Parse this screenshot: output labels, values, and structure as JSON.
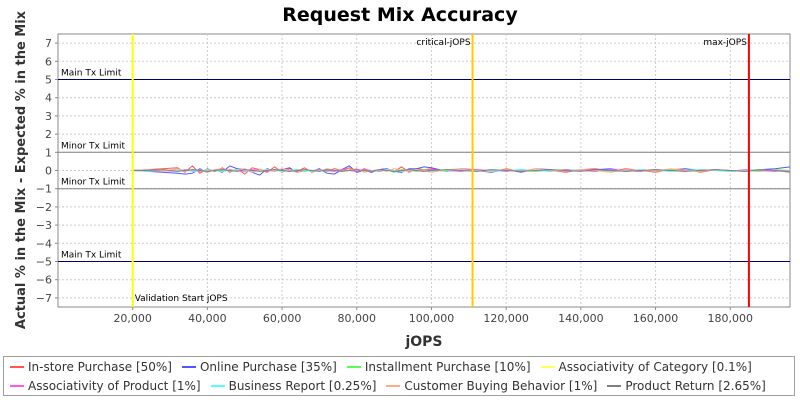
{
  "chart_data": {
    "type": "line",
    "title": "Request Mix Accuracy",
    "xlabel": "jOPS",
    "ylabel": "Actual % in the Mix - Expected % in the Mix",
    "xlim": [
      0,
      196000
    ],
    "ylim": [
      -7.5,
      7.5
    ],
    "x_ticks": [
      20000,
      40000,
      60000,
      80000,
      100000,
      120000,
      140000,
      160000,
      180000
    ],
    "x_tick_labels": [
      "20,000",
      "40,000",
      "60,000",
      "80,000",
      "100,000",
      "120,000",
      "140,000",
      "160,000",
      "180,000"
    ],
    "y_ticks": [
      -7,
      -6,
      -5,
      -4,
      -3,
      -2,
      -1,
      0,
      1,
      2,
      3,
      4,
      5,
      6,
      7
    ],
    "y_tick_labels": [
      "−7",
      "−6",
      "−5",
      "−4",
      "−3",
      "−2",
      "−1",
      "0",
      "1",
      "2",
      "3",
      "4",
      "5",
      "6",
      "7"
    ],
    "grid": true,
    "legend_position": "bottom",
    "horizontal_markers": [
      {
        "y": 5,
        "label": "Main Tx Limit",
        "color": "#000066"
      },
      {
        "y": 1,
        "label": "Minor Tx Limit",
        "color": "#808080"
      },
      {
        "y": -1,
        "label": "Minor Tx Limit",
        "color": "#808080"
      },
      {
        "y": -5,
        "label": "Main Tx Limit",
        "color": "#000066"
      }
    ],
    "vertical_markers": [
      {
        "x": 20000,
        "label": "Validation Start jOPS",
        "color": "#ffff00"
      },
      {
        "x": 111000,
        "label": "critical-jOPS",
        "color": "#ffcc00"
      },
      {
        "x": 185000,
        "label": "max-jOPS",
        "color": "#ff0000"
      }
    ],
    "x": [
      20000,
      24000,
      28000,
      32000,
      34000,
      36000,
      38000,
      40000,
      42000,
      44000,
      46000,
      48000,
      50000,
      52000,
      54000,
      56000,
      58000,
      60000,
      62000,
      64000,
      66000,
      68000,
      70000,
      72000,
      74000,
      76000,
      78000,
      80000,
      82000,
      84000,
      86000,
      88000,
      90000,
      92000,
      94000,
      96000,
      98000,
      100000,
      104000,
      108000,
      112000,
      116000,
      120000,
      124000,
      128000,
      132000,
      136000,
      140000,
      144000,
      148000,
      152000,
      156000,
      160000,
      164000,
      168000,
      172000,
      176000,
      180000,
      184000,
      188000,
      192000,
      196000
    ],
    "series": [
      {
        "name": "In-store Purchase [50%]",
        "color": "#ff5555",
        "values": [
          0.0,
          0.05,
          0.1,
          0.15,
          -0.1,
          0.25,
          -0.15,
          0.1,
          -0.05,
          0.15,
          -0.1,
          0.1,
          -0.2,
          0.15,
          0.05,
          -0.1,
          0.2,
          -0.1,
          0.1,
          -0.05,
          0.15,
          -0.1,
          0.05,
          -0.05,
          0.1,
          0.0,
          0.15,
          -0.1,
          0.1,
          -0.05,
          0.05,
          0.1,
          -0.05,
          0.2,
          -0.1,
          0.1,
          0.05,
          0.1,
          -0.05,
          0.1,
          0.05,
          -0.1,
          0.1,
          -0.05,
          0.1,
          0.0,
          -0.1,
          0.05,
          0.1,
          -0.05,
          0.1,
          0.0,
          -0.1,
          0.05,
          0.1,
          -0.1,
          0.05,
          0.0,
          -0.05,
          0.05,
          0.0,
          -0.1
        ]
      },
      {
        "name": "Online Purchase [35%]",
        "color": "#5555ff",
        "values": [
          0.0,
          -0.05,
          -0.1,
          -0.15,
          -0.2,
          -0.15,
          0.1,
          -0.1,
          0.05,
          -0.1,
          0.25,
          0.1,
          0.05,
          -0.1,
          -0.25,
          0.1,
          -0.05,
          0.05,
          0.15,
          -0.1,
          0.0,
          -0.05,
          0.1,
          -0.15,
          -0.2,
          0.05,
          0.25,
          -0.1,
          0.0,
          -0.1,
          0.05,
          0.1,
          -0.05,
          -0.1,
          0.1,
          0.1,
          0.2,
          0.15,
          -0.05,
          0.1,
          0.0,
          -0.1,
          0.05,
          -0.1,
          0.1,
          0.05,
          -0.05,
          0.0,
          0.05,
          0.1,
          -0.05,
          0.0,
          0.05,
          -0.05,
          0.1,
          0.0,
          0.05,
          -0.05,
          0.0,
          0.05,
          0.1,
          0.2
        ]
      },
      {
        "name": "Installment Purchase [10%]",
        "color": "#55ff55",
        "values": [
          0.0,
          0.0,
          0.05,
          0.0,
          -0.05,
          0.05,
          0.0,
          -0.05,
          0.05,
          0.0,
          -0.05,
          0.05,
          0.0,
          -0.05,
          0.05,
          0.0,
          0.05,
          -0.05,
          0.0,
          0.05,
          -0.05,
          0.0,
          0.05,
          -0.05,
          0.0,
          0.05,
          0.0,
          -0.05,
          0.05,
          0.0,
          -0.05,
          0.05,
          -0.1,
          0.05,
          0.0,
          -0.05,
          0.05,
          0.0,
          -0.05,
          0.05,
          0.0,
          -0.05,
          0.05,
          0.0,
          -0.05,
          0.0,
          0.05,
          0.0,
          -0.05,
          0.05,
          0.0,
          -0.05,
          0.0,
          0.05,
          0.0,
          -0.05,
          0.05,
          0.0,
          0.0,
          -0.05,
          0.05,
          0.0
        ]
      },
      {
        "name": "Associativity of Category [0.1%]",
        "color": "#ffff55",
        "values": [
          0.0,
          0.0,
          0.05,
          0.0,
          0.0,
          -0.05,
          0.0,
          0.05,
          0.0,
          -0.05,
          0.0,
          0.05,
          0.0,
          -0.05,
          0.0,
          0.05,
          0.0,
          -0.05,
          0.0,
          0.05,
          0.0,
          -0.05,
          0.0,
          0.05,
          0.0,
          -0.05,
          0.0,
          0.05,
          0.0,
          -0.05,
          0.0,
          0.05,
          0.0,
          -0.05,
          0.0,
          0.05,
          0.0,
          -0.05,
          0.0,
          0.05,
          0.0,
          -0.05,
          0.0,
          0.05,
          0.0,
          -0.05,
          0.0,
          0.05,
          0.0,
          -0.05,
          0.0,
          0.05,
          0.0,
          -0.05,
          0.0,
          0.05,
          0.0,
          -0.05,
          0.0,
          0.05,
          0.0,
          0.0
        ]
      },
      {
        "name": "Associativity of Product [1%]",
        "color": "#ff55ff",
        "values": [
          0.0,
          0.05,
          0.0,
          -0.05,
          0.05,
          0.0,
          -0.05,
          0.05,
          0.0,
          -0.05,
          0.05,
          0.0,
          -0.05,
          0.05,
          0.0,
          -0.05,
          0.05,
          0.0,
          -0.05,
          0.05,
          0.0,
          -0.05,
          0.05,
          0.0,
          -0.05,
          0.05,
          0.0,
          -0.05,
          0.05,
          0.0,
          -0.05,
          0.05,
          0.0,
          -0.05,
          0.05,
          0.0,
          -0.05,
          0.05,
          0.0,
          -0.05,
          0.05,
          0.0,
          -0.05,
          0.05,
          0.0,
          -0.05,
          0.05,
          0.0,
          -0.05,
          0.05,
          0.0,
          -0.05,
          0.05,
          0.0,
          -0.05,
          0.05,
          0.0,
          -0.05,
          0.05,
          0.0,
          -0.05,
          0.0
        ]
      },
      {
        "name": "Business Report [0.25%]",
        "color": "#55ffff",
        "values": [
          0.0,
          -0.05,
          0.0,
          0.05,
          0.0,
          -0.05,
          0.0,
          0.05,
          0.0,
          -0.05,
          0.0,
          0.05,
          0.0,
          -0.05,
          0.0,
          0.05,
          0.0,
          -0.05,
          0.0,
          0.05,
          0.0,
          -0.05,
          0.0,
          0.05,
          0.0,
          -0.05,
          0.0,
          0.05,
          0.0,
          -0.05,
          0.0,
          0.05,
          0.0,
          -0.05,
          0.0,
          0.05,
          0.0,
          -0.05,
          0.0,
          0.05,
          0.0,
          -0.05,
          0.0,
          0.05,
          0.0,
          -0.05,
          0.0,
          0.05,
          0.0,
          -0.05,
          0.0,
          0.05,
          0.0,
          -0.05,
          0.0,
          0.05,
          0.0,
          -0.05,
          0.0,
          0.05,
          0.0,
          0.0
        ]
      },
      {
        "name": "Customer Buying Behavior [1%]",
        "color": "#ffaa88",
        "values": [
          0.0,
          0.05,
          -0.05,
          0.1,
          -0.05,
          0.05,
          0.0,
          -0.1,
          0.05,
          0.1,
          -0.05,
          0.0,
          0.1,
          -0.1,
          0.05,
          0.0,
          -0.05,
          0.1,
          0.0,
          -0.1,
          0.05,
          0.0,
          -0.05,
          0.1,
          0.0,
          -0.05,
          0.05,
          0.1,
          -0.1,
          0.0,
          0.05,
          -0.05,
          0.1,
          0.0,
          -0.05,
          0.05,
          0.0,
          -0.1,
          0.05,
          0.1,
          -0.05,
          0.0,
          0.05,
          -0.05,
          0.1,
          0.0,
          -0.05,
          0.05,
          0.0,
          -0.1,
          0.05,
          0.0,
          -0.05,
          0.1,
          0.0,
          -0.05,
          0.05,
          0.0,
          -0.05,
          0.05,
          0.0,
          -0.05
        ]
      },
      {
        "name": "Product Return [2.65%]",
        "color": "#808080",
        "values": [
          0.0,
          0.0,
          0.05,
          -0.05,
          0.0,
          0.05,
          0.0,
          -0.05,
          0.0,
          0.05,
          0.0,
          -0.05,
          0.05,
          0.0,
          -0.05,
          0.0,
          0.05,
          0.0,
          -0.05,
          0.0,
          0.05,
          0.0,
          -0.05,
          0.05,
          0.0,
          -0.05,
          0.0,
          0.05,
          0.0,
          -0.05,
          0.05,
          0.0,
          -0.05,
          0.0,
          0.05,
          0.0,
          -0.05,
          0.0,
          0.05,
          0.0,
          -0.05,
          0.05,
          0.0,
          -0.05,
          0.0,
          0.05,
          0.0,
          -0.05,
          0.05,
          0.0,
          -0.05,
          0.0,
          0.05,
          0.0,
          -0.05,
          0.0,
          0.05,
          0.0,
          -0.05,
          0.05,
          0.0,
          -0.05
        ]
      }
    ]
  }
}
